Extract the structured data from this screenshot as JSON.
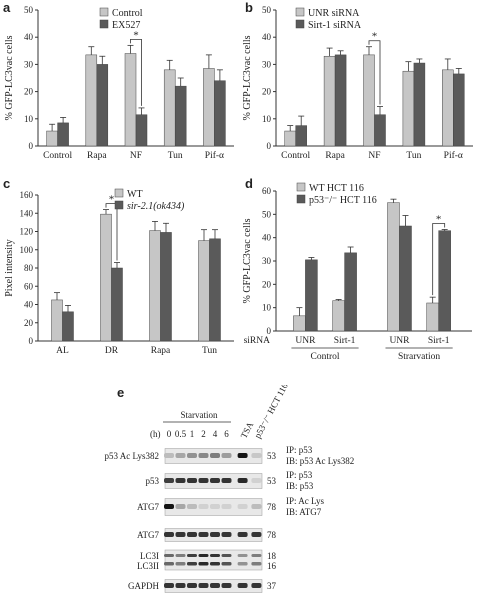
{
  "panel_letters": [
    "a",
    "b",
    "c",
    "d",
    "e"
  ],
  "colors": {
    "light": "#c6c6c6",
    "dark": "#5a5a5a"
  },
  "chart_data": [
    {
      "panel": "a",
      "type": "bar",
      "ylabel": "% GFP-LC3vac cells",
      "yticks": [
        0,
        10,
        20,
        30,
        40,
        50
      ],
      "ylim": [
        0,
        50
      ],
      "categories": [
        "Control",
        "Rapa",
        "NF",
        "Tun",
        "Pif-α"
      ],
      "series": [
        {
          "name": "Control",
          "values": [
            5.5,
            33.5,
            34,
            28,
            28.5
          ],
          "errors": [
            2.5,
            3,
            3,
            3.5,
            5
          ]
        },
        {
          "name": "EX527",
          "values": [
            8.5,
            30,
            11.5,
            22,
            24
          ],
          "errors": [
            2,
            3,
            2.5,
            3,
            4
          ]
        }
      ],
      "significance": [
        {
          "category": "NF",
          "label": "*"
        }
      ]
    },
    {
      "panel": "b",
      "type": "bar",
      "ylabel": "% GFP-LC3vac cells",
      "yticks": [
        0,
        10,
        20,
        30,
        40,
        50
      ],
      "ylim": [
        0,
        50
      ],
      "categories": [
        "Control",
        "Rapa",
        "NF",
        "Tun",
        "Pif-α"
      ],
      "series": [
        {
          "name": "UNR siRNA",
          "values": [
            5.5,
            33,
            33.5,
            27.5,
            28
          ],
          "errors": [
            2,
            3,
            3,
            3.5,
            4
          ]
        },
        {
          "name": "Sirt-1 siRNA",
          "values": [
            7.5,
            33.5,
            11.5,
            30.5,
            26.5
          ],
          "errors": [
            3.5,
            1.5,
            3,
            1.5,
            2
          ]
        }
      ],
      "significance": [
        {
          "category": "NF",
          "label": "*"
        }
      ]
    },
    {
      "panel": "c",
      "type": "bar",
      "ylabel": "Pixel intensity",
      "yticks": [
        0,
        20,
        40,
        60,
        80,
        100,
        120,
        140,
        160
      ],
      "ylim": [
        0,
        160
      ],
      "categories": [
        "AL",
        "DR",
        "Rapa",
        "Tun"
      ],
      "series": [
        {
          "name": "WT",
          "values": [
            45,
            139,
            121,
            110
          ],
          "errors": [
            8,
            5,
            10,
            12
          ]
        },
        {
          "name": "sir-2.1(ok434)",
          "values": [
            32,
            80,
            119,
            112
          ],
          "errors": [
            7,
            6,
            10,
            10
          ]
        }
      ],
      "significance": [
        {
          "category": "DR",
          "label": "*"
        }
      ]
    },
    {
      "panel": "d",
      "type": "bar",
      "ylabel": "% GFP-LC3vac cells",
      "yticks": [
        0,
        10,
        20,
        30,
        40,
        50,
        60
      ],
      "ylim": [
        0,
        60
      ],
      "categories": [
        "UNR",
        "Sirt-1",
        "UNR",
        "Sirt-1"
      ],
      "xprefix": "siRNA",
      "groups": [
        {
          "label": "Control",
          "span": [
            0,
            1
          ]
        },
        {
          "label": "Strarvation",
          "span": [
            2,
            3
          ]
        }
      ],
      "series": [
        {
          "name": "WT HCT 116",
          "values": [
            6.5,
            13,
            55,
            12
          ],
          "errors": [
            3.5,
            0.5,
            1.5,
            2.5
          ]
        },
        {
          "name": "p53⁻/⁻ HCT 116",
          "values": [
            30.5,
            33.5,
            45,
            43
          ],
          "errors": [
            1,
            2.5,
            4.5,
            0.5
          ]
        }
      ],
      "significance": [
        {
          "category_index": 3,
          "label": "*"
        }
      ]
    }
  ],
  "blot": {
    "header": "Starvation",
    "time_prefix": "(h)",
    "lanes": [
      "0",
      "0.5",
      "1",
      "2",
      "4",
      "6",
      "TSA",
      "p53⁻/⁻ HCT 116"
    ],
    "rows": [
      {
        "label": "p53 Ac Lys382",
        "kda": "53",
        "ip": "IP: p53",
        "ib": "IB: p53 Ac Lys382"
      },
      {
        "label": "p53",
        "kda": "53",
        "ip": "IP: p53",
        "ib": "IB: p53"
      },
      {
        "label": "ATG7",
        "kda": "78",
        "ip": "IP: Ac Lys",
        "ib": "IB: ATG7"
      },
      {
        "label": "ATG7",
        "kda": "78",
        "ip": "",
        "ib": ""
      },
      {
        "label": "LC3I",
        "label2": "LC3II",
        "kda": "18",
        "kda2": "16",
        "ip": "",
        "ib": ""
      },
      {
        "label": "GAPDH",
        "kda": "37",
        "ip": "",
        "ib": ""
      }
    ]
  }
}
